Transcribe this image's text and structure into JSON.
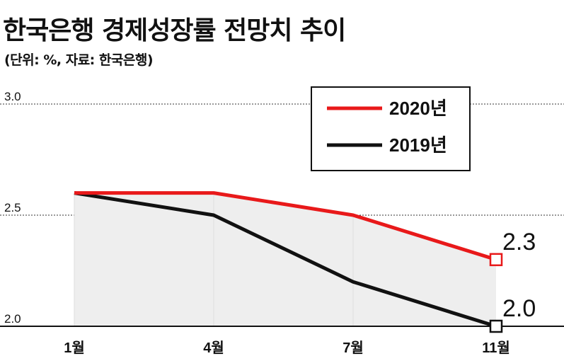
{
  "header": {
    "title": "한국은행 경제성장률 전망치 추이",
    "subtitle": "(단위: %, 자료: 한국은행)"
  },
  "chart_data": {
    "type": "line",
    "categories": [
      "1월",
      "4월",
      "7월",
      "11월"
    ],
    "series": [
      {
        "name": "2020년",
        "values": [
          2.6,
          2.6,
          2.5,
          2.3
        ],
        "color": "#e8191a",
        "end_label": "2.3"
      },
      {
        "name": "2019년",
        "values": [
          2.6,
          2.5,
          2.2,
          2.0
        ],
        "color": "#111111",
        "end_label": "2.0"
      }
    ],
    "y_ticks": [
      "3.0",
      "2.5",
      "2.0"
    ],
    "ylim": [
      2.0,
      3.0
    ],
    "area_fill": "#eeeeee",
    "legend_position": "top-right",
    "grid": "dashed horizontal lines at 2.5 and 3.0"
  }
}
